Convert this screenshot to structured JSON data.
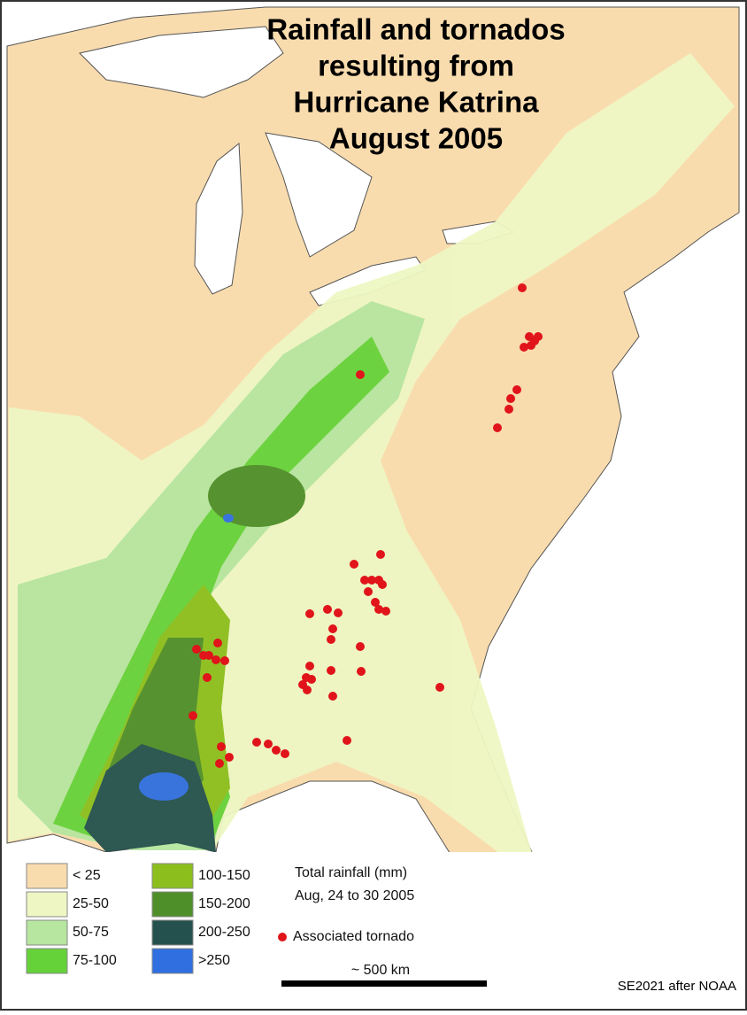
{
  "title": [
    "Rainfall and tornados",
    "resulting from",
    "Hurricane Katrina",
    "August 2005"
  ],
  "legend": {
    "items": [
      {
        "label": "< 25",
        "color": "#f9dcae"
      },
      {
        "label": "25-50",
        "color": "#eef7c4"
      },
      {
        "label": "50-75",
        "color": "#b6e6a0"
      },
      {
        "label": "75-100",
        "color": "#66d23a"
      },
      {
        "label": "100-150",
        "color": "#8cbf1e"
      },
      {
        "label": "150-200",
        "color": "#4f8f2a"
      },
      {
        "label": "200-250",
        "color": "#24514e"
      },
      {
        "label": ">250",
        "color": "#2f6fe0"
      }
    ],
    "caption": [
      "Total rainfall (mm)",
      "Aug, 24 to 30 2005"
    ],
    "tornado": "Associated tornado"
  },
  "scale": "~ 500 km",
  "credit": "SE2021 after NOAA"
}
